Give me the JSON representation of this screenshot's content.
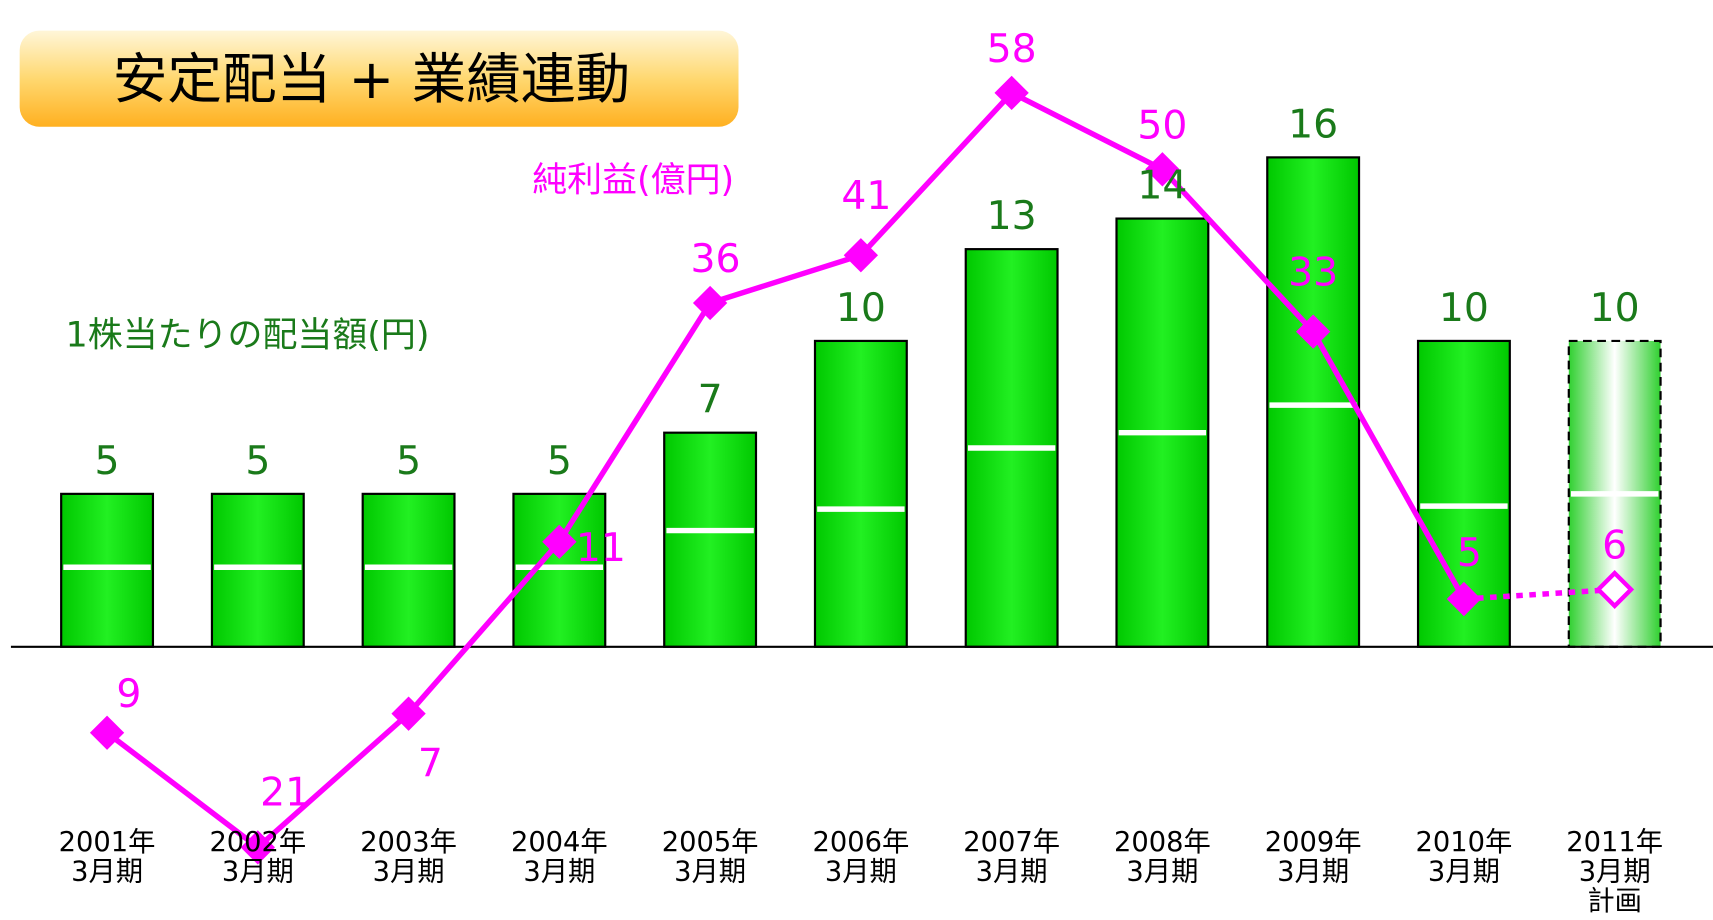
{
  "chart_data": {
    "type": "bar",
    "title": "安定配当 + 業績連動",
    "categories": [
      [
        "2001年",
        "3月期"
      ],
      [
        "2002年",
        "3月期"
      ],
      [
        "2003年",
        "3月期"
      ],
      [
        "2004年",
        "3月期"
      ],
      [
        "2005年",
        "3月期"
      ],
      [
        "2006年",
        "3月期"
      ],
      [
        "2007年",
        "3月期"
      ],
      [
        "2008年",
        "3月期"
      ],
      [
        "2009年",
        "3月期"
      ],
      [
        "2010年",
        "3月期"
      ],
      [
        "2011年",
        "3月期",
        "計画"
      ]
    ],
    "forecast": [
      false,
      false,
      false,
      false,
      false,
      false,
      false,
      false,
      false,
      false,
      true
    ],
    "series": [
      {
        "name": "1株当たりの配当額(円)",
        "color": "#00dd00",
        "label_color": "#1a7a1a",
        "values": [
          5,
          5,
          5,
          5,
          7,
          10,
          13,
          14,
          16,
          10,
          10
        ],
        "dividers": [
          2.6,
          2.6,
          2.6,
          2.6,
          3.8,
          4.5,
          6.5,
          7.0,
          7.9,
          4.6,
          5.0
        ]
      },
      {
        "name": "純利益(億円)",
        "color": "#ff00ff",
        "axis": "y2",
        "values": [
          -9,
          -21,
          -7,
          11,
          36,
          41,
          58,
          50,
          33,
          5,
          6
        ],
        "value_labels": [
          "9",
          "21",
          "7",
          "11",
          "36",
          "41",
          "58",
          "50",
          "33",
          "5",
          "6"
        ]
      }
    ],
    "ylim": [
      0,
      21
    ],
    "y2lim": [
      -22,
      62
    ]
  }
}
